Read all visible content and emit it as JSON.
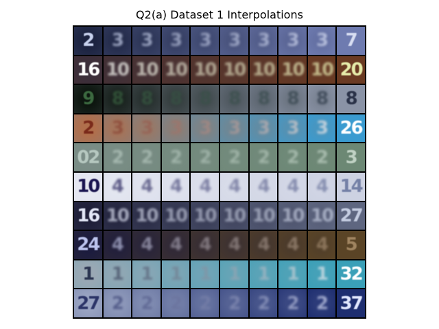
{
  "figure": {
    "title": "Q2(a) Dataset 1 Interpolations"
  },
  "grid": {
    "rows": [
      {
        "start": {
          "bg": "#1c2340",
          "fg": "#c8d2ee",
          "text": "2"
        },
        "end": {
          "bg": "#6e7bb0",
          "fg": "#d8def2",
          "text": "7"
        },
        "mid_text": "3"
      },
      {
        "start": {
          "bg": "#3a2e3a",
          "fg": "#ffffff",
          "text": "16"
        },
        "end": {
          "bg": "#6a3a22",
          "fg": "#e6ecaa",
          "text": "20"
        },
        "mid_text": "10"
      },
      {
        "start": {
          "bg": "#0d160f",
          "fg": "#3c6a40",
          "text": "9"
        },
        "end": {
          "bg": "#8a93a6",
          "fg": "#2a3248",
          "text": "8"
        },
        "mid_text": "8"
      },
      {
        "start": {
          "bg": "#b06f4c",
          "fg": "#7a2a1a",
          "text": "2"
        },
        "end": {
          "bg": "#3a9bd0",
          "fg": "#ffffff",
          "text": "26"
        },
        "mid_text": "3"
      },
      {
        "start": {
          "bg": "#7a8c86",
          "fg": "#b6c8c0",
          "text": "02"
        },
        "end": {
          "bg": "#6c8874",
          "fg": "#c0d2c4",
          "text": "3"
        },
        "mid_text": "2"
      },
      {
        "start": {
          "bg": "#e6e8f2",
          "fg": "#1a1450",
          "text": "10"
        },
        "end": {
          "bg": "#cdd2e2",
          "fg": "#7480a6",
          "text": "14"
        },
        "mid_text": "4"
      },
      {
        "start": {
          "bg": "#1e1e38",
          "fg": "#e2e6f6",
          "text": "16"
        },
        "end": {
          "bg": "#5e6680",
          "fg": "#c4cce0",
          "text": "27"
        },
        "mid_text": "10"
      },
      {
        "start": {
          "bg": "#1c1c3e",
          "fg": "#bcc4ee",
          "text": "24"
        },
        "end": {
          "bg": "#5a4426",
          "fg": "#a08460",
          "text": "5"
        },
        "mid_text": "4"
      },
      {
        "start": {
          "bg": "#9aa8b4",
          "fg": "#2a3450",
          "text": "1"
        },
        "end": {
          "bg": "#3aa0b8",
          "fg": "#ffffff",
          "text": "32"
        },
        "mid_text": "1"
      },
      {
        "start": {
          "bg": "#9aa4c2",
          "fg": "#2c3468",
          "text": "27"
        },
        "end": {
          "bg": "#1e2e70",
          "fg": "#e2e8ff",
          "text": "37"
        },
        "mid_text": "2"
      }
    ]
  }
}
